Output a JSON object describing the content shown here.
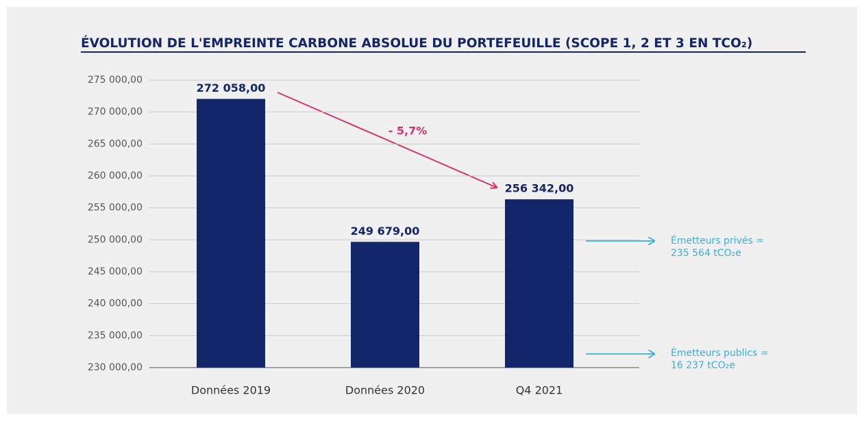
{
  "chart_data": {
    "type": "bar",
    "title": "ÉVOLUTION DE L'EMPREINTE CARBONE ABSOLUE DU PORTEFEUILLE (SCOPE 1, 2 ET 3 EN TCO₂)",
    "categories": [
      "Données 2019",
      "Données 2020",
      "Q4 2021"
    ],
    "values": [
      272058,
      249679,
      256342
    ],
    "value_labels": [
      "272 058,00",
      "249 679,00",
      "256 342,00"
    ],
    "color": "#14266a",
    "ylim": [
      230000,
      275000
    ],
    "yticks": [
      {
        "value": 230000,
        "label": "230 000,00"
      },
      {
        "value": 235000,
        "label": "235 000,00"
      },
      {
        "value": 240000,
        "label": "240 000,00"
      },
      {
        "value": 245000,
        "label": "245 000,00"
      },
      {
        "value": 250000,
        "label": "250 000,00"
      },
      {
        "value": 255000,
        "label": "255 000,00"
      },
      {
        "value": 260000,
        "label": "260 000,00"
      },
      {
        "value": 265000,
        "label": "265 000,00"
      },
      {
        "value": 270000,
        "label": "270 000,00"
      },
      {
        "value": 275000,
        "label": "275 000,00"
      }
    ],
    "grid": true,
    "annotations": {
      "change": "- 5,7%",
      "private": [
        "Émetteurs privés =",
        "235 564 tCO₂e"
      ],
      "public": [
        "Émetteurs publics =",
        "16 237 tCO₂e"
      ]
    }
  }
}
